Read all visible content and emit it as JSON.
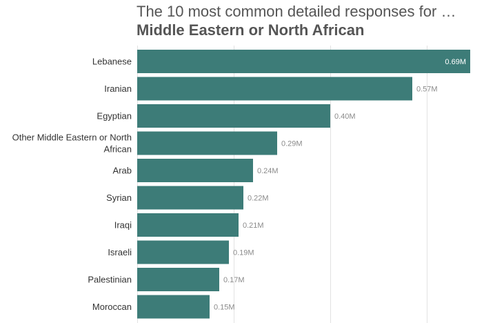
{
  "title_line1": "The 10 most common detailed responses for …",
  "title_line2": "Middle Eastern or North African",
  "chart_data": {
    "type": "bar",
    "orientation": "horizontal",
    "title": "The 10 most common detailed responses for … Middle Eastern or North African",
    "categories": [
      [
        "Lebanese"
      ],
      [
        "Iranian"
      ],
      [
        "Egyptian"
      ],
      [
        "Other Middle Eastern or North",
        "African"
      ],
      [
        "Arab"
      ],
      [
        "Syrian"
      ],
      [
        "Iraqi"
      ],
      [
        "Israeli"
      ],
      [
        "Palestinian"
      ],
      [
        "Moroccan"
      ]
    ],
    "values": [
      0.69,
      0.57,
      0.4,
      0.29,
      0.24,
      0.22,
      0.21,
      0.19,
      0.17,
      0.15
    ],
    "value_labels": [
      "0.69M",
      "0.57M",
      "0.40M",
      "0.29M",
      "0.24M",
      "0.22M",
      "0.21M",
      "0.19M",
      "0.17M",
      "0.15M"
    ],
    "xlim": [
      0,
      0.7
    ],
    "gridlines_at": [
      0,
      0.2,
      0.4,
      0.6
    ],
    "grid": true,
    "xlabel": "",
    "ylabel": "",
    "bar_color": "#3d7c78",
    "legend": "none"
  }
}
